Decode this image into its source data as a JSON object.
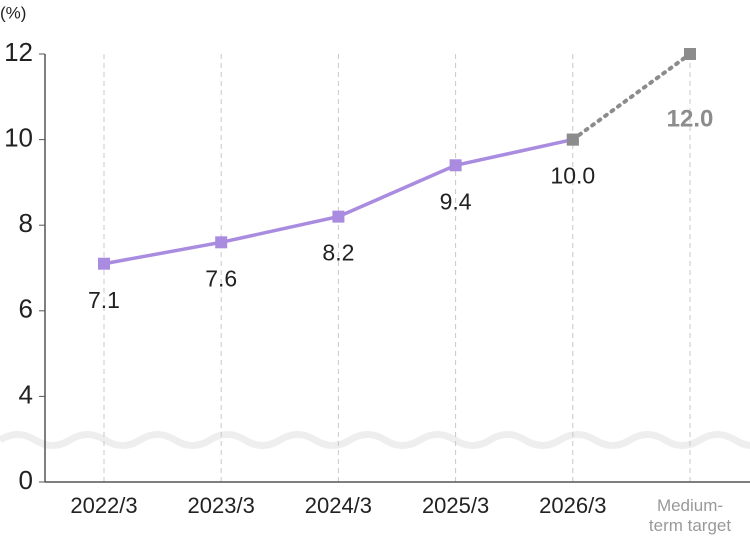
{
  "chart_data": {
    "type": "line",
    "y_label": "(%)",
    "categories": [
      "2022/3",
      "2023/3",
      "2024/3",
      "2025/3",
      "2026/3",
      "Medium-term target"
    ],
    "series": [
      {
        "color": "#a98be0",
        "line_style": "solid",
        "values": [
          7.1,
          7.6,
          8.2,
          9.4,
          10.0,
          null
        ],
        "value_labels": [
          "7.1",
          "7.6",
          "8.2",
          "9.4",
          "10.0",
          null
        ]
      },
      {
        "color": "#8c8c8c",
        "line_style": "dotted",
        "values": [
          null,
          null,
          null,
          null,
          10.0,
          12.0
        ],
        "value_labels": [
          null,
          null,
          null,
          null,
          null,
          "12.0"
        ]
      }
    ],
    "ylim": [
      0,
      12
    ],
    "yticks": [
      0,
      4,
      6,
      8,
      10,
      12
    ],
    "axis_break": true,
    "grid": true
  }
}
